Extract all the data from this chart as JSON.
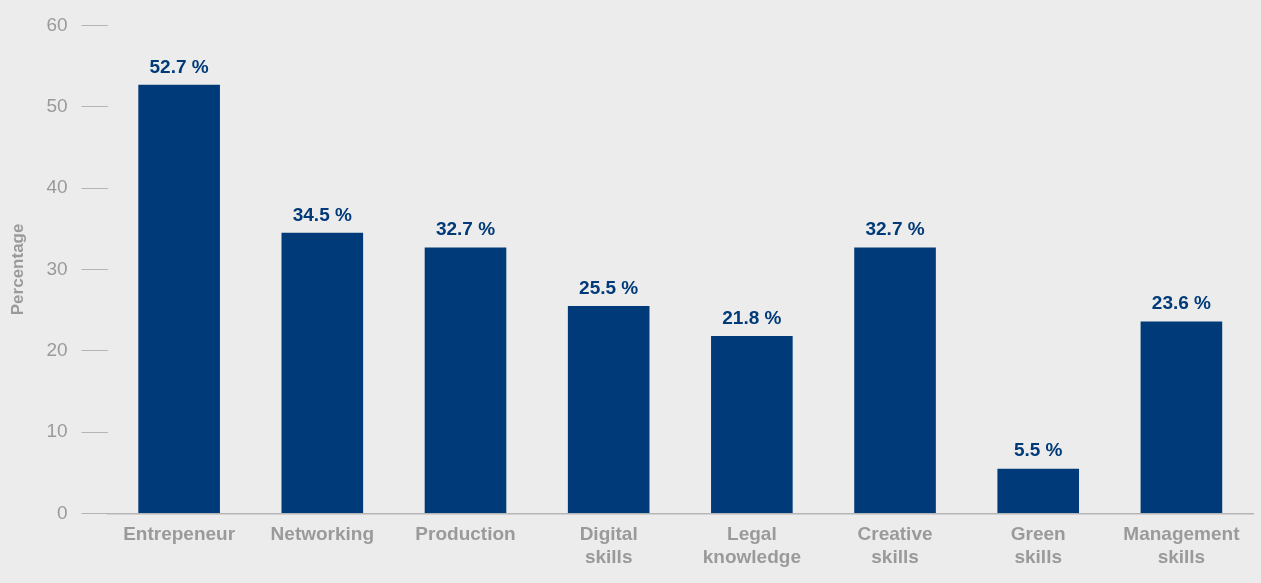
{
  "chart_data": {
    "type": "bar",
    "ylabel": "Percentage",
    "categories": [
      "Entrepeneur",
      "Networking",
      "Production",
      "Digital skills",
      "Legal knowledge",
      "Creative skills",
      "Green skills",
      "Management skills"
    ],
    "values": [
      52.7,
      34.5,
      32.7,
      25.5,
      21.8,
      32.7,
      5.5,
      23.6
    ],
    "value_labels": [
      "52.7 %",
      "34.5 %",
      "32.7 %",
      "25.5 %",
      "21.8 %",
      "32.7 %",
      "5.5 %",
      "23.6 %"
    ],
    "color": "#003a78",
    "ylim": [
      0,
      60
    ],
    "yticks": [
      0,
      10,
      20,
      30,
      40,
      50,
      60
    ],
    "grid": false
  }
}
